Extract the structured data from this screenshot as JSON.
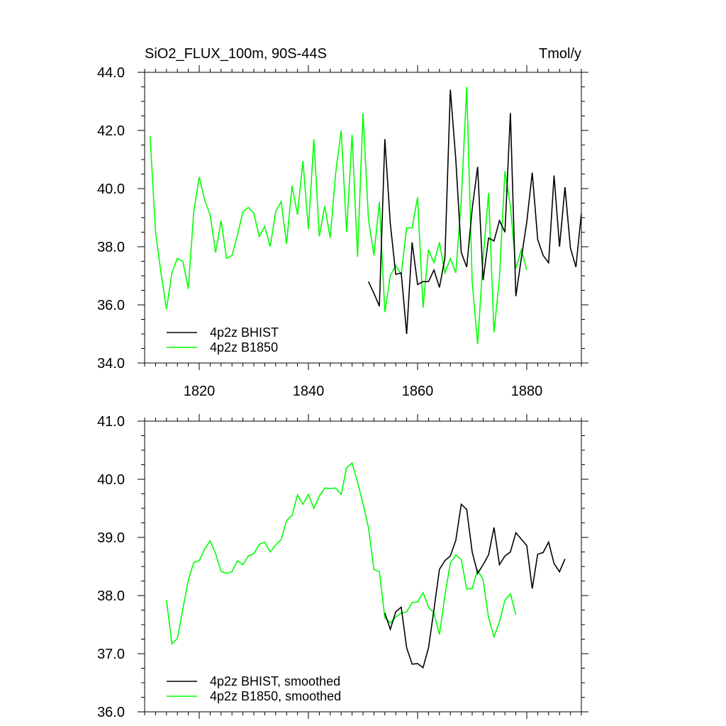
{
  "chart_data": [
    {
      "type": "line",
      "title": "SiO2_FLUX_100m, 90S-44S",
      "units": "Tmol/y",
      "xlabel": "",
      "ylabel": "",
      "xlim": [
        1810,
        1890
      ],
      "ylim": [
        34.0,
        44.0
      ],
      "x_ticks": [
        1820,
        1840,
        1860,
        1880
      ],
      "x_tick_labels": [
        "1820",
        "1840",
        "1860",
        "1880"
      ],
      "y_ticks": [
        34,
        36,
        38,
        40,
        42,
        44
      ],
      "y_tick_labels": [
        "34.0",
        "36.0",
        "38.0",
        "40.0",
        "42.0",
        "44.0"
      ],
      "legend_position": "bottom-left",
      "series": [
        {
          "name": "4p2z BHIST",
          "color": "#000000",
          "x_start": 1851,
          "values": [
            36.8,
            36.4,
            35.95,
            41.7,
            38.8,
            37.05,
            37.1,
            35.0,
            38.15,
            36.7,
            36.8,
            36.8,
            37.2,
            36.6,
            37.6,
            43.4,
            41.0,
            37.8,
            37.3,
            39.3,
            40.75,
            36.85,
            38.3,
            38.2,
            38.9,
            38.5,
            42.6,
            36.3,
            37.6,
            38.85,
            40.55,
            38.25,
            37.7,
            37.45,
            40.45,
            38.0,
            40.05,
            37.95,
            37.3,
            39.15
          ]
        },
        {
          "name": "4p2z B1850",
          "color": "#00ff00",
          "x_start": 1811,
          "values": [
            41.8,
            38.5,
            37.1,
            35.85,
            37.1,
            37.6,
            37.5,
            36.55,
            39.2,
            40.4,
            39.6,
            39.1,
            37.8,
            38.9,
            37.6,
            37.7,
            38.4,
            39.2,
            39.35,
            39.15,
            38.35,
            38.7,
            38.0,
            39.2,
            39.55,
            38.1,
            40.1,
            39.1,
            40.95,
            38.6,
            41.7,
            38.35,
            39.4,
            38.3,
            40.55,
            42.0,
            38.5,
            41.85,
            37.65,
            42.6,
            38.95,
            37.7,
            39.55,
            35.75,
            37.0,
            37.35,
            37.05,
            38.65,
            38.65,
            39.7,
            35.9,
            37.9,
            37.45,
            38.15,
            37.1,
            37.6,
            37.1,
            39.6,
            43.5,
            36.8,
            34.65,
            37.6,
            39.85,
            35.05,
            36.95,
            40.6,
            39.4,
            37.25,
            37.9,
            37.2
          ]
        }
      ]
    },
    {
      "type": "line",
      "title": "",
      "xlabel": "",
      "ylabel": "",
      "xlim": [
        1810,
        1890
      ],
      "ylim": [
        36.0,
        41.0
      ],
      "x_ticks": [
        1820,
        1840,
        1860,
        1880
      ],
      "x_tick_labels": [],
      "y_ticks": [
        36,
        37,
        38,
        39,
        40,
        41
      ],
      "y_tick_labels": [
        "36.0",
        "37.0",
        "38.0",
        "39.0",
        "40.0",
        "41.0"
      ],
      "legend_position": "bottom-left",
      "series": [
        {
          "name": "4p2z BHIST, smoothed",
          "color": "#000000",
          "x_start": 1854,
          "values": [
            37.7,
            37.42,
            37.72,
            37.8,
            37.1,
            36.82,
            36.83,
            36.76,
            37.1,
            37.76,
            38.45,
            38.6,
            38.68,
            38.95,
            39.57,
            39.48,
            38.75,
            38.38,
            38.53,
            38.7,
            39.17,
            38.53,
            38.68,
            38.75,
            39.08,
            38.97,
            38.86,
            38.12,
            38.71,
            38.74,
            38.92,
            38.55,
            38.41,
            38.63
          ]
        },
        {
          "name": "4p2z B1850, smoothed",
          "color": "#00ff00",
          "x_start": 1814,
          "values": [
            37.92,
            37.17,
            37.26,
            37.77,
            38.26,
            38.57,
            38.6,
            38.8,
            38.94,
            38.72,
            38.42,
            38.38,
            38.41,
            38.6,
            38.53,
            38.68,
            38.72,
            38.88,
            38.92,
            38.75,
            38.87,
            38.96,
            39.29,
            39.38,
            39.73,
            39.57,
            39.74,
            39.5,
            39.71,
            39.85,
            39.84,
            39.85,
            39.74,
            40.2,
            40.28,
            39.95,
            39.58,
            39.17,
            38.45,
            38.41,
            37.62,
            37.53,
            37.63,
            37.7,
            37.72,
            37.88,
            37.89,
            38.05,
            37.8,
            37.7,
            37.33,
            38.0,
            38.56,
            38.7,
            38.62,
            38.11,
            38.12,
            38.44,
            38.27,
            37.62,
            37.29,
            37.55,
            37.92,
            38.03,
            37.67
          ]
        }
      ]
    }
  ]
}
